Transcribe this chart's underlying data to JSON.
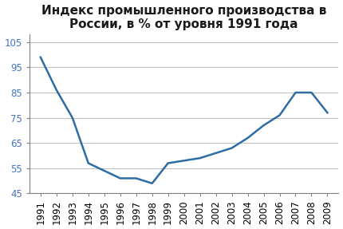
{
  "years": [
    1991,
    1992,
    1993,
    1994,
    1995,
    1996,
    1997,
    1998,
    1999,
    2000,
    2001,
    2002,
    2003,
    2004,
    2005,
    2006,
    2007,
    2008,
    2009
  ],
  "values": [
    99,
    86,
    75,
    57,
    54,
    51,
    51,
    49,
    57,
    58,
    59,
    61,
    63,
    67,
    72,
    76,
    85,
    85,
    77
  ],
  "line_color": "#2E6DA4",
  "line_width": 1.8,
  "title_line1": "Индекс промышленного производства в",
  "title_line2": "России, в % от уровня 1991 года",
  "ylim": [
    45,
    108
  ],
  "yticks": [
    45,
    55,
    65,
    75,
    85,
    95,
    105
  ],
  "ytick_labels": [
    "45",
    "55",
    "65",
    "75",
    "85",
    "95",
    "105"
  ],
  "ytick_color": "#4472C4",
  "background_color": "#ffffff",
  "grid_color": "#C0C0C0",
  "spine_color": "#808080",
  "title_fontsize": 11,
  "tick_fontsize": 8.5
}
